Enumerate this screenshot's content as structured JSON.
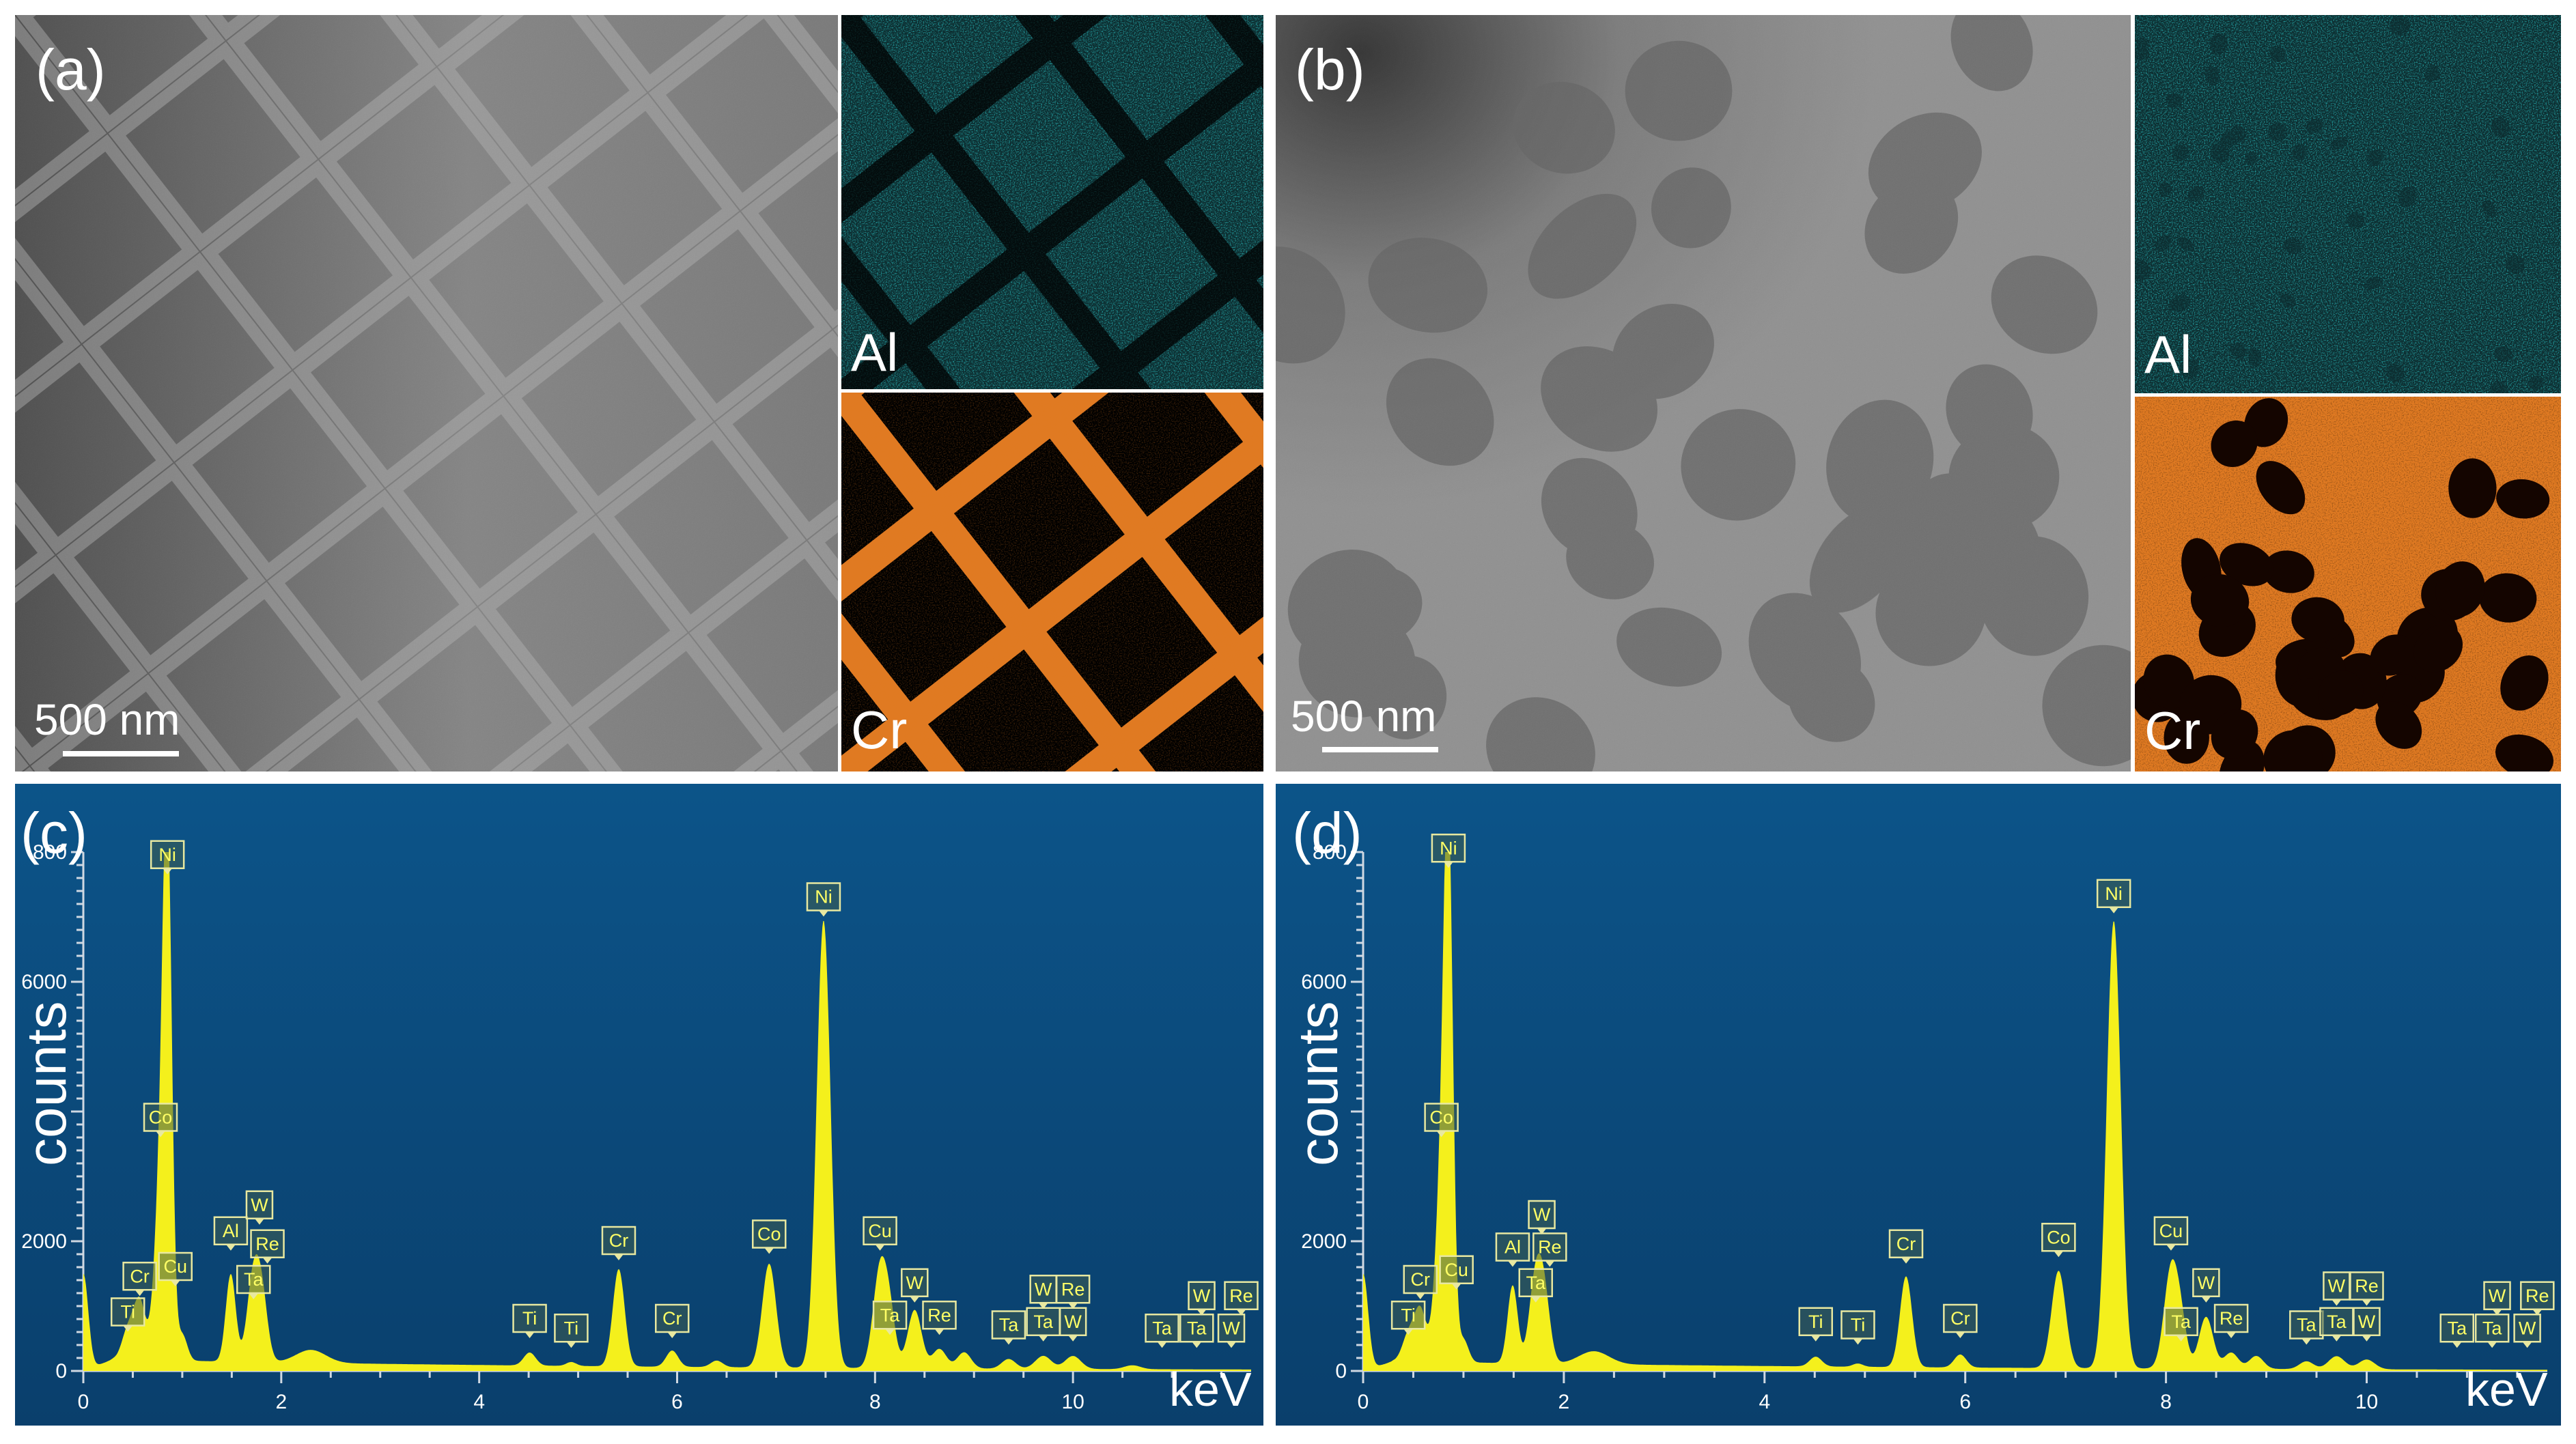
{
  "colors": {
    "spectrum_bg": "#0b4a7c",
    "spectrum_fill": "#f4f01c",
    "al_map": "#27b3b5",
    "cr_map": "#e07a22"
  },
  "panel_a": {
    "label": "(a)",
    "scale_bar": "500 nm",
    "map_top_label": "Al",
    "map_bottom_label": "Cr"
  },
  "panel_b": {
    "label": "(b)",
    "scale_bar": "500 nm",
    "map_top_label": "Al",
    "map_bottom_label": "Cr"
  },
  "panel_c": {
    "label": "(c)",
    "ylabel": "counts",
    "xunit": "keV"
  },
  "panel_d": {
    "label": "(d)",
    "ylabel": "counts",
    "xunit": "keV"
  },
  "chart_data": [
    {
      "panel": "(c)",
      "type": "area",
      "title": "",
      "xlabel": "keV",
      "ylabel": "counts",
      "xlim": [
        0,
        11.8
      ],
      "ylim": [
        0,
        8000
      ],
      "xticks": [
        0,
        2,
        4,
        6,
        8,
        10
      ],
      "yticks": [
        0,
        2000,
        6000
      ],
      "yticks_partial": [
        "800"
      ],
      "baseline_peaks": [
        {
          "x": 0.0,
          "y": 1500,
          "w": 0.05
        },
        {
          "x": 0.45,
          "y": 450,
          "w": 0.06
        },
        {
          "x": 0.57,
          "y": 900,
          "w": 0.06
        },
        {
          "x": 0.78,
          "y": 2700,
          "w": 0.06
        },
        {
          "x": 0.85,
          "y": 7550,
          "w": 0.045
        },
        {
          "x": 1.0,
          "y": 400,
          "w": 0.05
        },
        {
          "x": 1.49,
          "y": 1350,
          "w": 0.05
        },
        {
          "x": 1.71,
          "y": 1150,
          "w": 0.06
        },
        {
          "x": 1.8,
          "y": 1050,
          "w": 0.06
        },
        {
          "x": 2.3,
          "y": 200,
          "w": 0.15
        },
        {
          "x": 4.51,
          "y": 200,
          "w": 0.06
        },
        {
          "x": 4.93,
          "y": 60,
          "w": 0.05
        },
        {
          "x": 5.41,
          "y": 1500,
          "w": 0.06
        },
        {
          "x": 5.95,
          "y": 250,
          "w": 0.06
        },
        {
          "x": 6.4,
          "y": 100,
          "w": 0.06
        },
        {
          "x": 6.93,
          "y": 1600,
          "w": 0.07
        },
        {
          "x": 7.48,
          "y": 6900,
          "w": 0.07
        },
        {
          "x": 8.05,
          "y": 1500,
          "w": 0.07
        },
        {
          "x": 8.15,
          "y": 700,
          "w": 0.06
        },
        {
          "x": 8.4,
          "y": 900,
          "w": 0.07
        },
        {
          "x": 8.65,
          "y": 300,
          "w": 0.07
        },
        {
          "x": 8.9,
          "y": 250,
          "w": 0.07
        },
        {
          "x": 9.35,
          "y": 150,
          "w": 0.07
        },
        {
          "x": 9.7,
          "y": 200,
          "w": 0.08
        },
        {
          "x": 10.0,
          "y": 200,
          "w": 0.08
        },
        {
          "x": 10.6,
          "y": 60,
          "w": 0.08
        }
      ],
      "background_level": 180,
      "peak_labels": [
        {
          "text": "Ti",
          "x": 0.45,
          "y": 700
        },
        {
          "text": "Cr",
          "x": 0.57,
          "y": 1250
        },
        {
          "text": "Ni",
          "x": 0.85,
          "y": 7750
        },
        {
          "text": "Co",
          "x": 0.78,
          "y": 3700
        },
        {
          "text": "Cu",
          "x": 0.93,
          "y": 1400
        },
        {
          "text": "Al",
          "x": 1.49,
          "y": 1950
        },
        {
          "text": "W",
          "x": 1.78,
          "y": 2350
        },
        {
          "text": "Re",
          "x": 1.86,
          "y": 1750
        },
        {
          "text": "Ta",
          "x": 1.72,
          "y": 1200
        },
        {
          "text": "Ti",
          "x": 4.51,
          "y": 600
        },
        {
          "text": "Ti",
          "x": 4.93,
          "y": 450
        },
        {
          "text": "Cr",
          "x": 5.41,
          "y": 1800
        },
        {
          "text": "Cr",
          "x": 5.95,
          "y": 600
        },
        {
          "text": "Co",
          "x": 6.93,
          "y": 1900
        },
        {
          "text": "Ni",
          "x": 7.48,
          "y": 7100
        },
        {
          "text": "Cu",
          "x": 8.05,
          "y": 1950
        },
        {
          "text": "Ta",
          "x": 8.15,
          "y": 650
        },
        {
          "text": "W",
          "x": 8.4,
          "y": 1150
        },
        {
          "text": "Re",
          "x": 8.65,
          "y": 650
        },
        {
          "text": "Ta",
          "x": 9.35,
          "y": 500
        },
        {
          "text": "W",
          "x": 9.7,
          "y": 1050
        },
        {
          "text": "Re",
          "x": 10.0,
          "y": 1050
        },
        {
          "text": "Ta",
          "x": 9.7,
          "y": 550
        },
        {
          "text": "W",
          "x": 10.0,
          "y": 550
        },
        {
          "text": "W",
          "x": 11.3,
          "y": 950
        },
        {
          "text": "Re",
          "x": 11.7,
          "y": 950
        },
        {
          "text": "Ta",
          "x": 10.9,
          "y": 450
        },
        {
          "text": "Ta",
          "x": 11.25,
          "y": 450
        },
        {
          "text": "W",
          "x": 11.6,
          "y": 450
        }
      ]
    },
    {
      "panel": "(d)",
      "type": "area",
      "title": "",
      "xlabel": "keV",
      "ylabel": "counts",
      "xlim": [
        0,
        11.8
      ],
      "ylim": [
        0,
        8000
      ],
      "xticks": [
        0,
        2,
        4,
        6,
        8,
        10
      ],
      "yticks": [
        0,
        2000,
        6000
      ],
      "yticks_partial": [
        "800"
      ],
      "baseline_peaks": [
        {
          "x": 0.0,
          "y": 1500,
          "w": 0.05
        },
        {
          "x": 0.45,
          "y": 400,
          "w": 0.06
        },
        {
          "x": 0.57,
          "y": 800,
          "w": 0.06
        },
        {
          "x": 0.78,
          "y": 2700,
          "w": 0.06
        },
        {
          "x": 0.85,
          "y": 7600,
          "w": 0.045
        },
        {
          "x": 1.0,
          "y": 350,
          "w": 0.05
        },
        {
          "x": 1.49,
          "y": 1200,
          "w": 0.05
        },
        {
          "x": 1.71,
          "y": 1150,
          "w": 0.06
        },
        {
          "x": 1.8,
          "y": 1100,
          "w": 0.06
        },
        {
          "x": 2.3,
          "y": 200,
          "w": 0.15
        },
        {
          "x": 4.51,
          "y": 150,
          "w": 0.06
        },
        {
          "x": 4.93,
          "y": 50,
          "w": 0.05
        },
        {
          "x": 5.41,
          "y": 1400,
          "w": 0.06
        },
        {
          "x": 5.95,
          "y": 200,
          "w": 0.06
        },
        {
          "x": 6.93,
          "y": 1500,
          "w": 0.07
        },
        {
          "x": 7.48,
          "y": 6900,
          "w": 0.07
        },
        {
          "x": 8.05,
          "y": 1500,
          "w": 0.07
        },
        {
          "x": 8.15,
          "y": 600,
          "w": 0.06
        },
        {
          "x": 8.4,
          "y": 800,
          "w": 0.07
        },
        {
          "x": 8.65,
          "y": 250,
          "w": 0.07
        },
        {
          "x": 8.9,
          "y": 200,
          "w": 0.07
        },
        {
          "x": 9.4,
          "y": 120,
          "w": 0.07
        },
        {
          "x": 9.7,
          "y": 200,
          "w": 0.08
        },
        {
          "x": 10.0,
          "y": 150,
          "w": 0.08
        }
      ],
      "background_level": 150,
      "peak_labels": [
        {
          "text": "Ti",
          "x": 0.45,
          "y": 650
        },
        {
          "text": "Cr",
          "x": 0.57,
          "y": 1200
        },
        {
          "text": "Ni",
          "x": 0.85,
          "y": 7850
        },
        {
          "text": "Co",
          "x": 0.78,
          "y": 3700
        },
        {
          "text": "Cu",
          "x": 0.93,
          "y": 1350
        },
        {
          "text": "Al",
          "x": 1.49,
          "y": 1700
        },
        {
          "text": "W",
          "x": 1.78,
          "y": 2200
        },
        {
          "text": "Re",
          "x": 1.86,
          "y": 1700
        },
        {
          "text": "Ta",
          "x": 1.72,
          "y": 1150
        },
        {
          "text": "Ti",
          "x": 4.51,
          "y": 550
        },
        {
          "text": "Ti",
          "x": 4.93,
          "y": 500
        },
        {
          "text": "Cr",
          "x": 5.41,
          "y": 1750
        },
        {
          "text": "Cr",
          "x": 5.95,
          "y": 600
        },
        {
          "text": "Co",
          "x": 6.93,
          "y": 1850
        },
        {
          "text": "Ni",
          "x": 7.48,
          "y": 7150
        },
        {
          "text": "Cu",
          "x": 8.05,
          "y": 1950
        },
        {
          "text": "Ta",
          "x": 8.15,
          "y": 550
        },
        {
          "text": "W",
          "x": 8.4,
          "y": 1150
        },
        {
          "text": "Re",
          "x": 8.65,
          "y": 600
        },
        {
          "text": "Ta",
          "x": 9.4,
          "y": 500
        },
        {
          "text": "W",
          "x": 9.7,
          "y": 1100
        },
        {
          "text": "Re",
          "x": 10.0,
          "y": 1100
        },
        {
          "text": "Ta",
          "x": 9.7,
          "y": 550
        },
        {
          "text": "W",
          "x": 10.0,
          "y": 550
        },
        {
          "text": "W",
          "x": 11.3,
          "y": 950
        },
        {
          "text": "Re",
          "x": 11.7,
          "y": 950
        },
        {
          "text": "Ta",
          "x": 10.9,
          "y": 450
        },
        {
          "text": "Ta",
          "x": 11.25,
          "y": 450
        },
        {
          "text": "W",
          "x": 11.6,
          "y": 450
        }
      ]
    }
  ]
}
